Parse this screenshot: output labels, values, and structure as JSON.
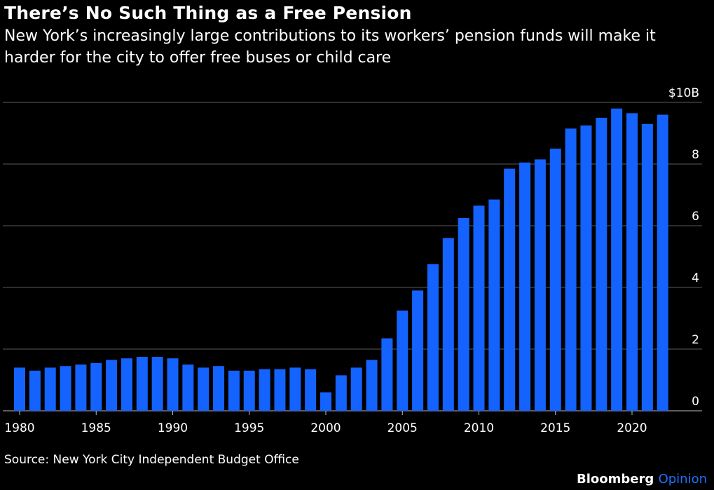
{
  "title": "There’s No Such Thing as a Free Pension",
  "subtitle": "New York’s increasingly large contributions to its workers’ pension funds will make it harder for the city to offer free buses or child care",
  "source": "Source: New York City Independent Budget Office",
  "brand": {
    "name": "Bloomberg",
    "suffix": "Opinion"
  },
  "colors": {
    "background": "#000000",
    "bar": "#1463ff",
    "grid": "#5a5a5a",
    "text": "#ffffff",
    "accent": "#1f6fff"
  },
  "chart_data": {
    "type": "bar",
    "title": "There’s No Such Thing as a Free Pension",
    "xlabel": "",
    "ylabel": "",
    "ylim": [
      0,
      10
    ],
    "yticks": [
      0,
      2,
      4,
      6,
      8,
      10
    ],
    "ytick_labels": [
      "0",
      "2",
      "4",
      "6",
      "8",
      "$10B"
    ],
    "xtick_labels": [
      "1980",
      "1985",
      "1990",
      "1995",
      "2000",
      "2005",
      "2010",
      "2015",
      "2020"
    ],
    "y_axis_side": "right",
    "grid": true,
    "categories": [
      1980,
      1981,
      1982,
      1983,
      1984,
      1985,
      1986,
      1987,
      1988,
      1989,
      1990,
      1991,
      1992,
      1993,
      1994,
      1995,
      1996,
      1997,
      1998,
      1999,
      2000,
      2001,
      2002,
      2003,
      2004,
      2005,
      2006,
      2007,
      2008,
      2009,
      2010,
      2011,
      2012,
      2013,
      2014,
      2015,
      2016,
      2017,
      2018,
      2019,
      2020,
      2021,
      2022
    ],
    "values": [
      1.4,
      1.3,
      1.4,
      1.45,
      1.5,
      1.55,
      1.65,
      1.7,
      1.75,
      1.75,
      1.7,
      1.5,
      1.4,
      1.45,
      1.3,
      1.3,
      1.35,
      1.35,
      1.4,
      1.35,
      0.6,
      1.15,
      1.4,
      1.65,
      2.35,
      3.25,
      3.9,
      4.75,
      5.6,
      6.25,
      6.65,
      6.85,
      7.85,
      8.05,
      8.15,
      8.5,
      9.15,
      9.25,
      9.5,
      9.8,
      9.65,
      9.3,
      9.6
    ]
  }
}
